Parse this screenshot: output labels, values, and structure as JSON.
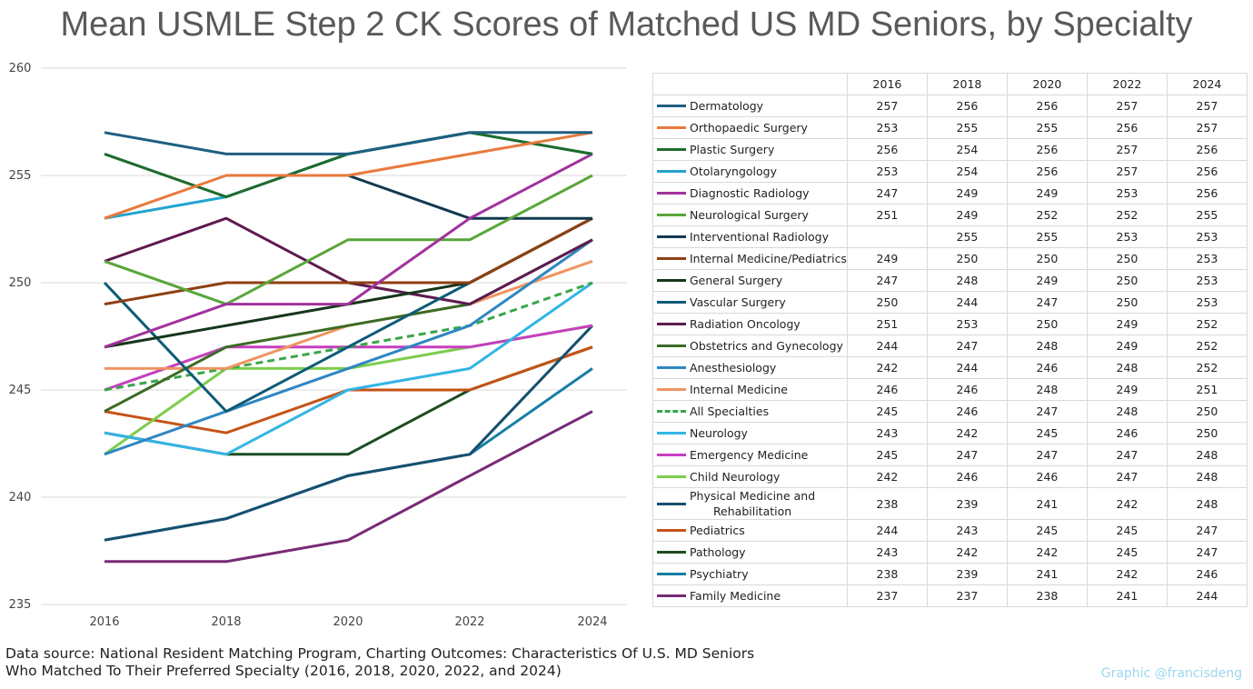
{
  "title": "Mean USMLE Step 2 CK Scores of Matched US MD Seniors, by Specialty",
  "source_line1": "Data source: National Resident Matching Program, Charting Outcomes: Characteristics Of U.S. MD Seniors",
  "source_line2": "Who Matched To Their Preferred Specialty (2016, 2018, 2020, 2022, and 2024)",
  "credit": "Graphic @francisdeng",
  "chart_data": {
    "type": "line",
    "title": "Mean USMLE Step 2 CK Scores of Matched US MD Seniors, by Specialty",
    "xlabel": "",
    "ylabel": "",
    "x": [
      "2016",
      "2018",
      "2020",
      "2022",
      "2024"
    ],
    "ylim": [
      235,
      260
    ],
    "yticks": [
      235,
      240,
      245,
      250,
      255,
      260
    ],
    "grid": "horizontal",
    "legend_placement": "table at right",
    "series": [
      {
        "name": "Dermatology",
        "color": "#1f5f82",
        "values": [
          257,
          256,
          256,
          257,
          257
        ]
      },
      {
        "name": "Orthopaedic Surgery",
        "color": "#e87a3c",
        "values": [
          253,
          255,
          255,
          256,
          257
        ]
      },
      {
        "name": "Plastic Surgery",
        "color": "#1e6b2c",
        "values": [
          256,
          254,
          256,
          257,
          256
        ]
      },
      {
        "name": "Otolaryngology",
        "color": "#22a3cf",
        "values": [
          253,
          254,
          256,
          257,
          256
        ]
      },
      {
        "name": "Diagnostic Radiology",
        "color": "#a2319d",
        "values": [
          247,
          249,
          249,
          253,
          256
        ]
      },
      {
        "name": "Neurological Surgery",
        "color": "#5aa63a",
        "values": [
          251,
          249,
          252,
          252,
          255
        ]
      },
      {
        "name": "Interventional Radiology",
        "color": "#12394f",
        "values": [
          null,
          255,
          255,
          253,
          253
        ]
      },
      {
        "name": "Internal Medicine/Pediatrics",
        "color": "#8f3f12",
        "values": [
          249,
          250,
          250,
          250,
          253
        ]
      },
      {
        "name": "General Surgery",
        "color": "#16361a",
        "values": [
          247,
          248,
          249,
          250,
          253
        ]
      },
      {
        "name": "Vascular Surgery",
        "color": "#0d5a78",
        "values": [
          250,
          244,
          247,
          250,
          253
        ]
      },
      {
        "name": "Radiation Oncology",
        "color": "#5e1a4f",
        "values": [
          251,
          253,
          250,
          249,
          252
        ]
      },
      {
        "name": "Obstetrics and Gynecology",
        "color": "#3b6b24",
        "values": [
          244,
          247,
          248,
          249,
          252
        ]
      },
      {
        "name": "Anesthesiology",
        "color": "#2e86c1",
        "values": [
          242,
          244,
          246,
          248,
          252
        ]
      },
      {
        "name": "Internal Medicine",
        "color": "#ef9462",
        "values": [
          246,
          246,
          248,
          249,
          251
        ]
      },
      {
        "name": "All Specialties",
        "color": "#3aa54a",
        "dashed": true,
        "values": [
          245,
          246,
          247,
          248,
          250
        ]
      },
      {
        "name": "Neurology",
        "color": "#33b5e5",
        "values": [
          243,
          242,
          245,
          246,
          250
        ]
      },
      {
        "name": "Emergency Medicine",
        "color": "#c63fbf",
        "values": [
          245,
          247,
          247,
          247,
          248
        ]
      },
      {
        "name": "Child Neurology",
        "color": "#7ccd4d",
        "values": [
          242,
          246,
          246,
          247,
          248
        ]
      },
      {
        "name": "Physical Medicine and Rehabilitation",
        "label_line1": "Physical Medicine and",
        "label_line2": "Rehabilitation",
        "color": "#174f6e",
        "values": [
          238,
          239,
          241,
          242,
          248
        ]
      },
      {
        "name": "Pediatrics",
        "color": "#c65316",
        "values": [
          244,
          243,
          245,
          245,
          247
        ]
      },
      {
        "name": "Pathology",
        "color": "#1b4d20",
        "values": [
          243,
          242,
          242,
          245,
          247
        ]
      },
      {
        "name": "Psychiatry",
        "color": "#167ea3",
        "values": [
          238,
          239,
          241,
          242,
          246
        ]
      },
      {
        "name": "Family Medicine",
        "color": "#782a76",
        "values": [
          237,
          237,
          238,
          241,
          244
        ]
      }
    ]
  }
}
